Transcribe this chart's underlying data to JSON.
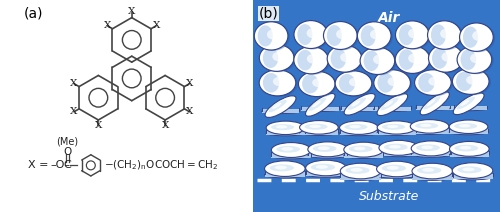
{
  "fig_width": 5.0,
  "fig_height": 2.12,
  "dpi": 100,
  "bg_color": "#ffffff",
  "label_a": "(a)",
  "label_b": "(b)",
  "panel_b_bg": "#3575C8",
  "air_text": "Air",
  "substrate_text": "Substrate",
  "text_color_white": "#ffffff",
  "bond_color": "#444444",
  "bond_lw": 1.2,
  "disc_top_color": "#f0f5ff",
  "disc_side_color": "#aec8e8",
  "disc_edge_color": "#334488",
  "disc_highlight": "#ffffff"
}
